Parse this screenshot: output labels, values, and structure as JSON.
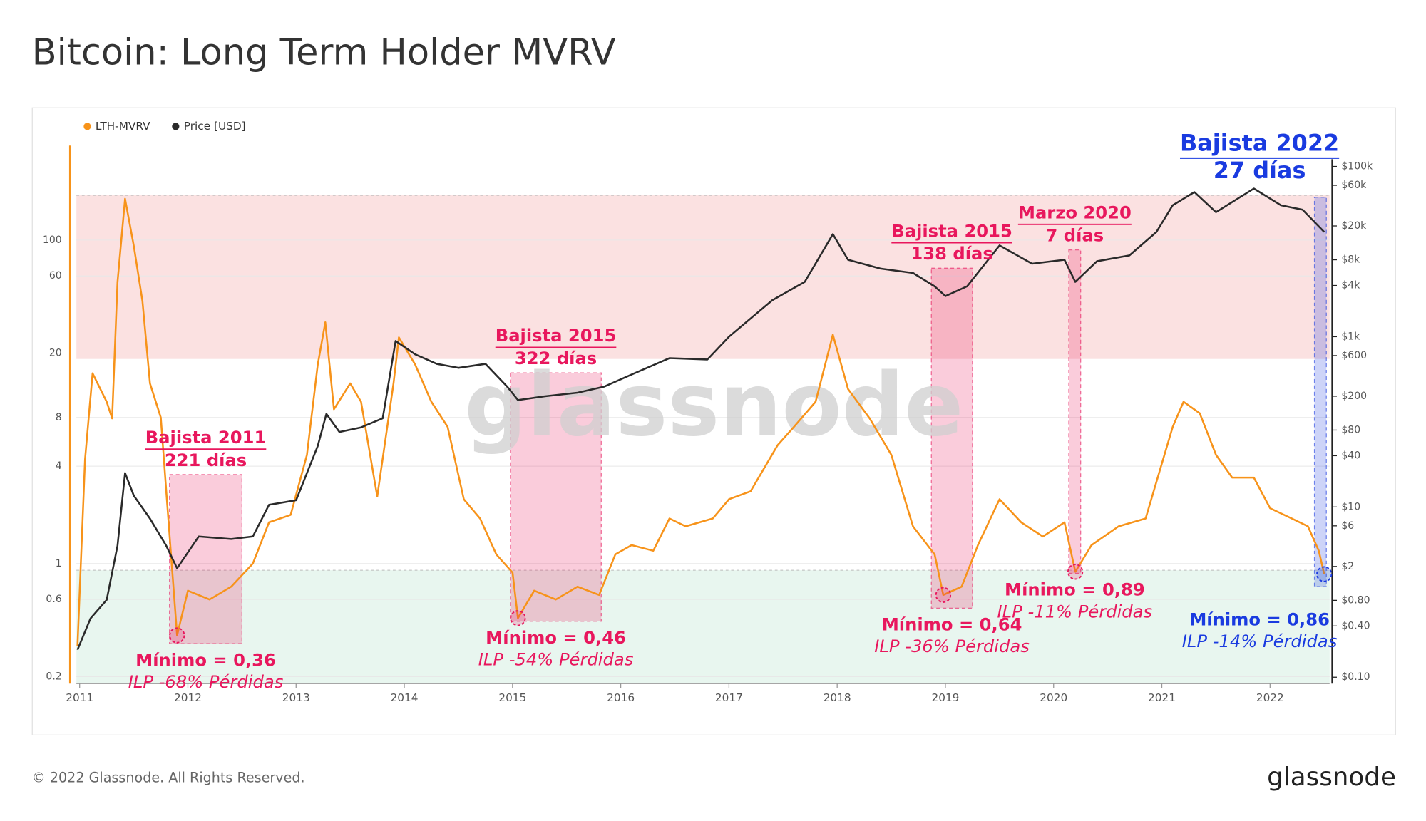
{
  "chart_data": {
    "type": "line",
    "title": "Bitcoin: Long Term Holder MVRV",
    "watermark": "glassnode",
    "footer": "© 2022 Glassnode. All Rights Reserved.",
    "logo": "glassnode",
    "xlim": [
      2010.97,
      2022.55
    ],
    "xticks": [
      2011,
      2012,
      2013,
      2014,
      2015,
      2016,
      2017,
      2018,
      2019,
      2020,
      2021,
      2022
    ],
    "log_scale": true,
    "ylim": [
      0.181,
      384
    ],
    "yticks": [
      0.2,
      0.6,
      1,
      4,
      8,
      20,
      60,
      100
    ],
    "y2lim": [
      0.084,
      176000
    ],
    "y2ticks": [
      {
        "value": 0.1,
        "label": "$0.10"
      },
      {
        "value": 0.4,
        "label": "$0.40"
      },
      {
        "value": 0.8,
        "label": "$0.80"
      },
      {
        "value": 2,
        "label": "$2"
      },
      {
        "value": 6,
        "label": "$6"
      },
      {
        "value": 10,
        "label": "$10"
      },
      {
        "value": 40,
        "label": "$40"
      },
      {
        "value": 80,
        "label": "$80"
      },
      {
        "value": 200,
        "label": "$200"
      },
      {
        "value": 600,
        "label": "$600"
      },
      {
        "value": 1000,
        "label": "$1k"
      },
      {
        "value": 4000,
        "label": "$4k"
      },
      {
        "value": 8000,
        "label": "$8k"
      },
      {
        "value": 20000,
        "label": "$20k"
      },
      {
        "value": 60000,
        "label": "$60k"
      },
      {
        "value": 100000,
        "label": "$100k"
      }
    ],
    "grid": true,
    "legend": "top-left",
    "zones": [
      {
        "from": 18.4,
        "to": 189,
        "color": "#fadcdc"
      },
      {
        "from": 0.181,
        "to": 0.91,
        "color": "#e4f4ec"
      }
    ],
    "series": [
      {
        "name": "LTH-MVRV",
        "color": "#f7931a",
        "x": [
          2010.98,
          2011.05,
          2011.12,
          2011.25,
          2011.3,
          2011.35,
          2011.42,
          2011.5,
          2011.58,
          2011.65,
          2011.75,
          2011.8,
          2011.9,
          2012.0,
          2012.2,
          2012.4,
          2012.6,
          2012.75,
          2012.95,
          2013.1,
          2013.2,
          2013.27,
          2013.35,
          2013.5,
          2013.6,
          2013.75,
          2013.9,
          2013.95,
          2014.1,
          2014.25,
          2014.4,
          2014.55,
          2014.7,
          2014.85,
          2015.0,
          2015.05,
          2015.2,
          2015.4,
          2015.6,
          2015.8,
          2015.95,
          2016.1,
          2016.3,
          2016.45,
          2016.6,
          2016.85,
          2017.0,
          2017.2,
          2017.45,
          2017.6,
          2017.8,
          2017.96,
          2018.1,
          2018.3,
          2018.5,
          2018.7,
          2018.9,
          2018.98,
          2019.15,
          2019.3,
          2019.5,
          2019.7,
          2019.9,
          2020.1,
          2020.2,
          2020.35,
          2020.6,
          2020.85,
          2020.95,
          2021.1,
          2021.2,
          2021.35,
          2021.5,
          2021.65,
          2021.85,
          2022.0,
          2022.2,
          2022.35,
          2022.45,
          2022.5
        ],
        "values": [
          0.31,
          4.4,
          15,
          10,
          7.9,
          55,
          180,
          92,
          42,
          13,
          8,
          2.8,
          0.36,
          0.68,
          0.6,
          0.72,
          1,
          1.8,
          2,
          4.7,
          17,
          31,
          9,
          13,
          10,
          2.6,
          13,
          25,
          17,
          10,
          7,
          2.5,
          1.9,
          1.14,
          0.88,
          0.46,
          0.68,
          0.6,
          0.72,
          0.64,
          1.14,
          1.3,
          1.2,
          1.9,
          1.7,
          1.9,
          2.5,
          2.8,
          5.4,
          7,
          10,
          26,
          12,
          7.9,
          4.7,
          1.7,
          1.14,
          0.64,
          0.72,
          1.3,
          2.5,
          1.8,
          1.47,
          1.8,
          0.89,
          1.3,
          1.7,
          1.9,
          3.2,
          7,
          10,
          8.5,
          4.7,
          3.4,
          3.4,
          2.2,
          1.9,
          1.7,
          1.2,
          0.86
        ]
      },
      {
        "name": "Price [USD]",
        "color": "#2a2a2a",
        "axis": "y2",
        "x": [
          2010.98,
          2011.1,
          2011.25,
          2011.35,
          2011.42,
          2011.5,
          2011.65,
          2011.8,
          2011.9,
          2012.1,
          2012.4,
          2012.6,
          2012.75,
          2013.0,
          2013.2,
          2013.28,
          2013.4,
          2013.6,
          2013.8,
          2013.92,
          2014.1,
          2014.3,
          2014.5,
          2014.75,
          2014.95,
          2015.05,
          2015.3,
          2015.6,
          2015.85,
          2016.1,
          2016.45,
          2016.8,
          2017.0,
          2017.4,
          2017.7,
          2017.96,
          2018.1,
          2018.4,
          2018.7,
          2018.9,
          2019.0,
          2019.2,
          2019.5,
          2019.8,
          2020.1,
          2020.2,
          2020.4,
          2020.7,
          2020.95,
          2021.1,
          2021.3,
          2021.5,
          2021.85,
          2022.1,
          2022.3,
          2022.5
        ],
        "values": [
          0.21,
          0.49,
          0.81,
          3.5,
          25,
          13.6,
          7.3,
          3.5,
          1.9,
          4.5,
          4.2,
          4.5,
          10.6,
          12,
          52,
          124,
          76,
          86,
          110,
          890,
          620,
          480,
          430,
          480,
          260,
          180,
          200,
          220,
          260,
          360,
          560,
          540,
          1000,
          2680,
          4400,
          16000,
          8000,
          6300,
          5600,
          3900,
          3000,
          3900,
          11800,
          7200,
          8000,
          4400,
          7700,
          9000,
          17000,
          35000,
          50000,
          29000,
          55000,
          35000,
          31000,
          17000
        ]
      }
    ],
    "annotations": [
      {
        "title": "Bajista 2011",
        "duration": "221 días",
        "minimum": "Mínimo = 0,36",
        "loss": "ILP -68% Pérdidas",
        "color": "#e8175d",
        "x": [
          2011.83,
          2012.5
        ],
        "y": [
          0.32,
          3.55
        ],
        "min_x": 2011.9,
        "min_value": 0.36
      },
      {
        "title": "Bajista 2015",
        "duration": "322 días",
        "minimum": "Mínimo = 0,46",
        "loss": "ILP -54% Pérdidas",
        "color": "#e8175d",
        "x": [
          2014.98,
          2015.82
        ],
        "y": [
          0.44,
          15.1
        ],
        "min_x": 2015.05,
        "min_value": 0.46
      },
      {
        "title": "Bajista 2015",
        "duration": "138 días",
        "minimum": "Mínimo = 0,64",
        "loss": "ILP -36% Pérdidas",
        "color": "#e8175d",
        "x": [
          2018.87,
          2019.25
        ],
        "y": [
          0.53,
          67
        ],
        "min_x": 2018.98,
        "min_value": 0.64
      },
      {
        "title": "Marzo 2020",
        "duration": "7 días",
        "minimum": "Mínimo = 0,89",
        "loss": "ILP -11% Pérdidas",
        "color": "#e8175d",
        "x": [
          2020.14,
          2020.25
        ],
        "y": [
          0.87,
          87
        ],
        "min_x": 2020.2,
        "min_value": 0.89
      },
      {
        "title": "Bajista 2022",
        "duration": "27 días",
        "minimum": "Mínimo = 0,86",
        "loss": "ILP -14% Pérdidas",
        "color": "#1a3be0",
        "x": [
          2022.41,
          2022.52
        ],
        "y": [
          0.72,
          184
        ],
        "min_x": 2022.5,
        "min_value": 0.86
      }
    ]
  }
}
